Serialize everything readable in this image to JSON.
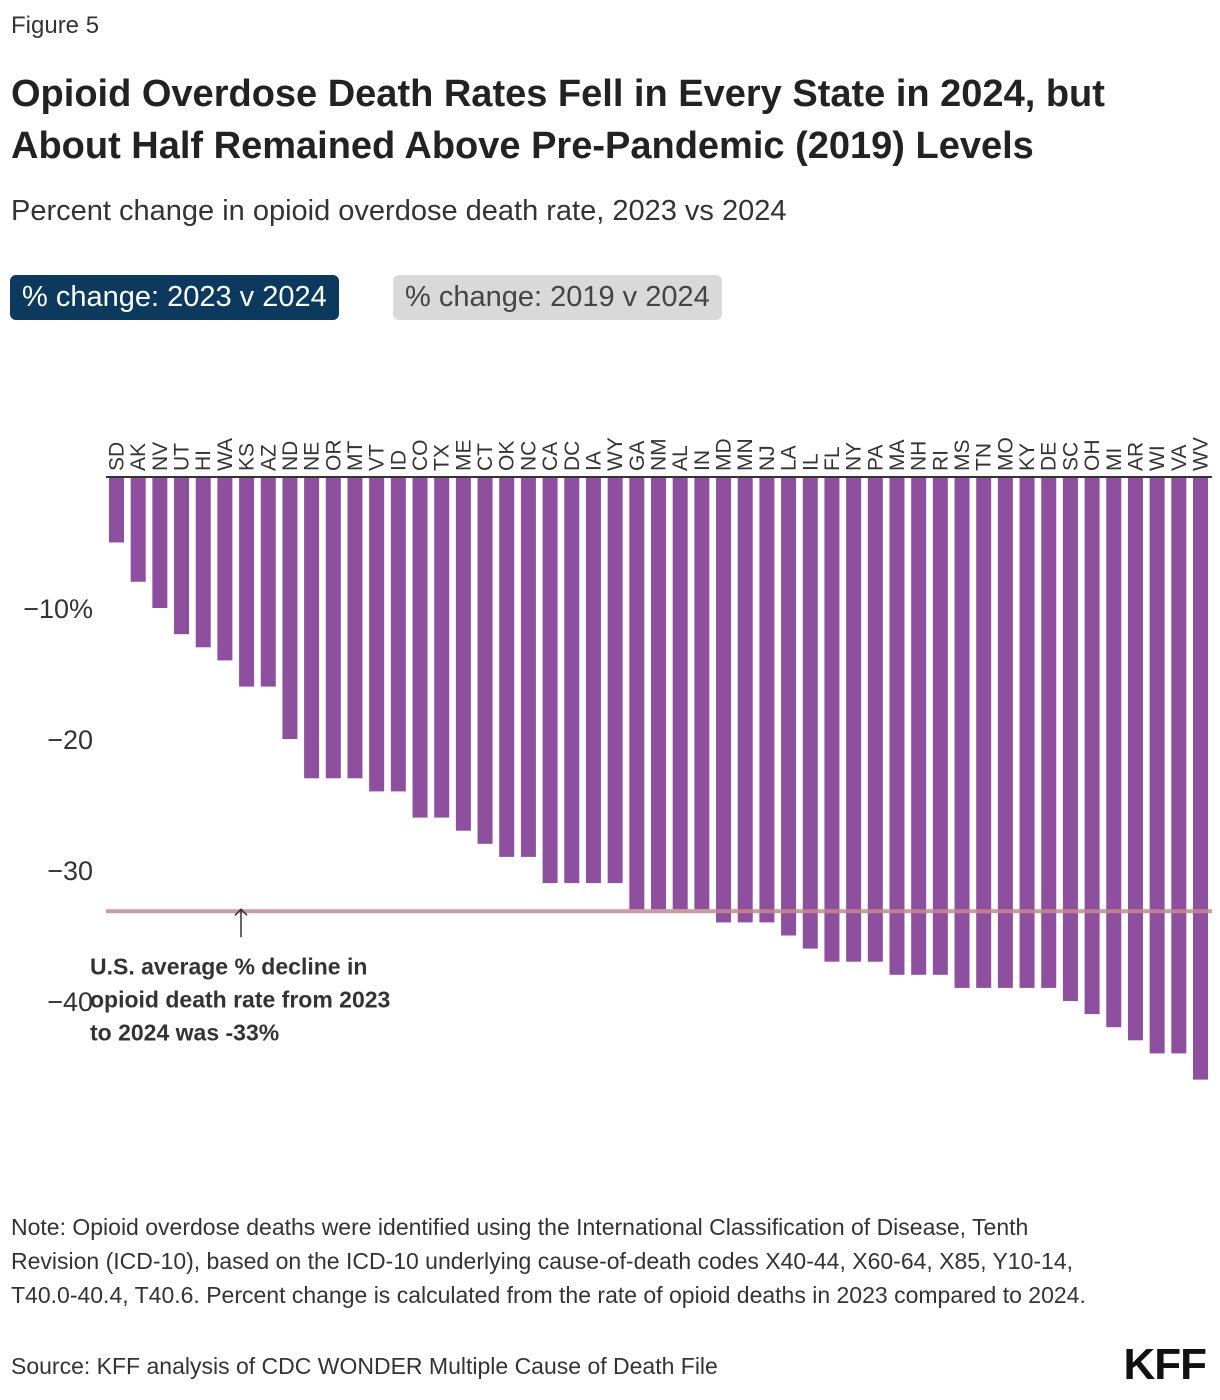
{
  "figure_label": "Figure 5",
  "title": "Opioid Overdose Death Rates Fell in Every State in 2024, but About Half Remained Above Pre-Pandemic (2019) Levels",
  "subtitle": "Percent change in opioid overdose death rate, 2023 vs 2024",
  "tabs": [
    {
      "label": "% change: 2023 v 2024",
      "active": true
    },
    {
      "label": "% change: 2019 v 2024",
      "active": false
    }
  ],
  "chart_data": {
    "type": "bar",
    "categories": [
      "SD",
      "AK",
      "NV",
      "UT",
      "HI",
      "WA",
      "KS",
      "AZ",
      "ND",
      "NE",
      "OR",
      "MT",
      "VT",
      "ID",
      "CO",
      "TX",
      "ME",
      "CT",
      "OK",
      "NC",
      "CA",
      "DC",
      "IA",
      "WY",
      "GA",
      "NM",
      "AL",
      "IN",
      "MD",
      "MN",
      "NJ",
      "LA",
      "IL",
      "FL",
      "NY",
      "PA",
      "MA",
      "NH",
      "RI",
      "MS",
      "TN",
      "MO",
      "KY",
      "DE",
      "SC",
      "OH",
      "MI",
      "AR",
      "WI",
      "VA",
      "WV"
    ],
    "values": [
      -5,
      -8,
      -10,
      -12,
      -13,
      -14,
      -16,
      -16,
      -20,
      -23,
      -23,
      -23,
      -24,
      -24,
      -26,
      -26,
      -27,
      -28,
      -29,
      -29,
      -31,
      -31,
      -31,
      -31,
      -33,
      -33,
      -33,
      -33,
      -34,
      -34,
      -34,
      -35,
      -36,
      -37,
      -37,
      -37,
      -38,
      -38,
      -38,
      -39,
      -39,
      -39,
      -39,
      -39,
      -40,
      -41,
      -42,
      -43,
      -44,
      -44,
      -46
    ],
    "ylim": [
      -50,
      0
    ],
    "yticks": [
      {
        "value": -10,
        "label": "−10%"
      },
      {
        "value": -20,
        "label": "−20"
      },
      {
        "value": -30,
        "label": "−30"
      },
      {
        "value": -40,
        "label": "−40"
      }
    ],
    "bar_color": "#8e4f9e",
    "reference_line": {
      "value": -33,
      "color": "#c48a8c",
      "annotation": [
        "U.S. average % decline in",
        "opioid death rate from 2023",
        "to 2024 was -33%"
      ]
    },
    "grid": false,
    "legend": "none"
  },
  "note": "Note: Opioid overdose deaths were identified using the International Classification of Disease, Tenth Revision (ICD-10), based on the ICD-10 underlying cause-of-death codes X40-44, X60-64, X85, Y10-14, T40.0-40.4, T40.6. Percent change is calculated from the rate of opioid deaths in 2023 compared to 2024.",
  "source": "Source: KFF analysis of CDC WONDER Multiple Cause of Death File",
  "logo": "KFF"
}
